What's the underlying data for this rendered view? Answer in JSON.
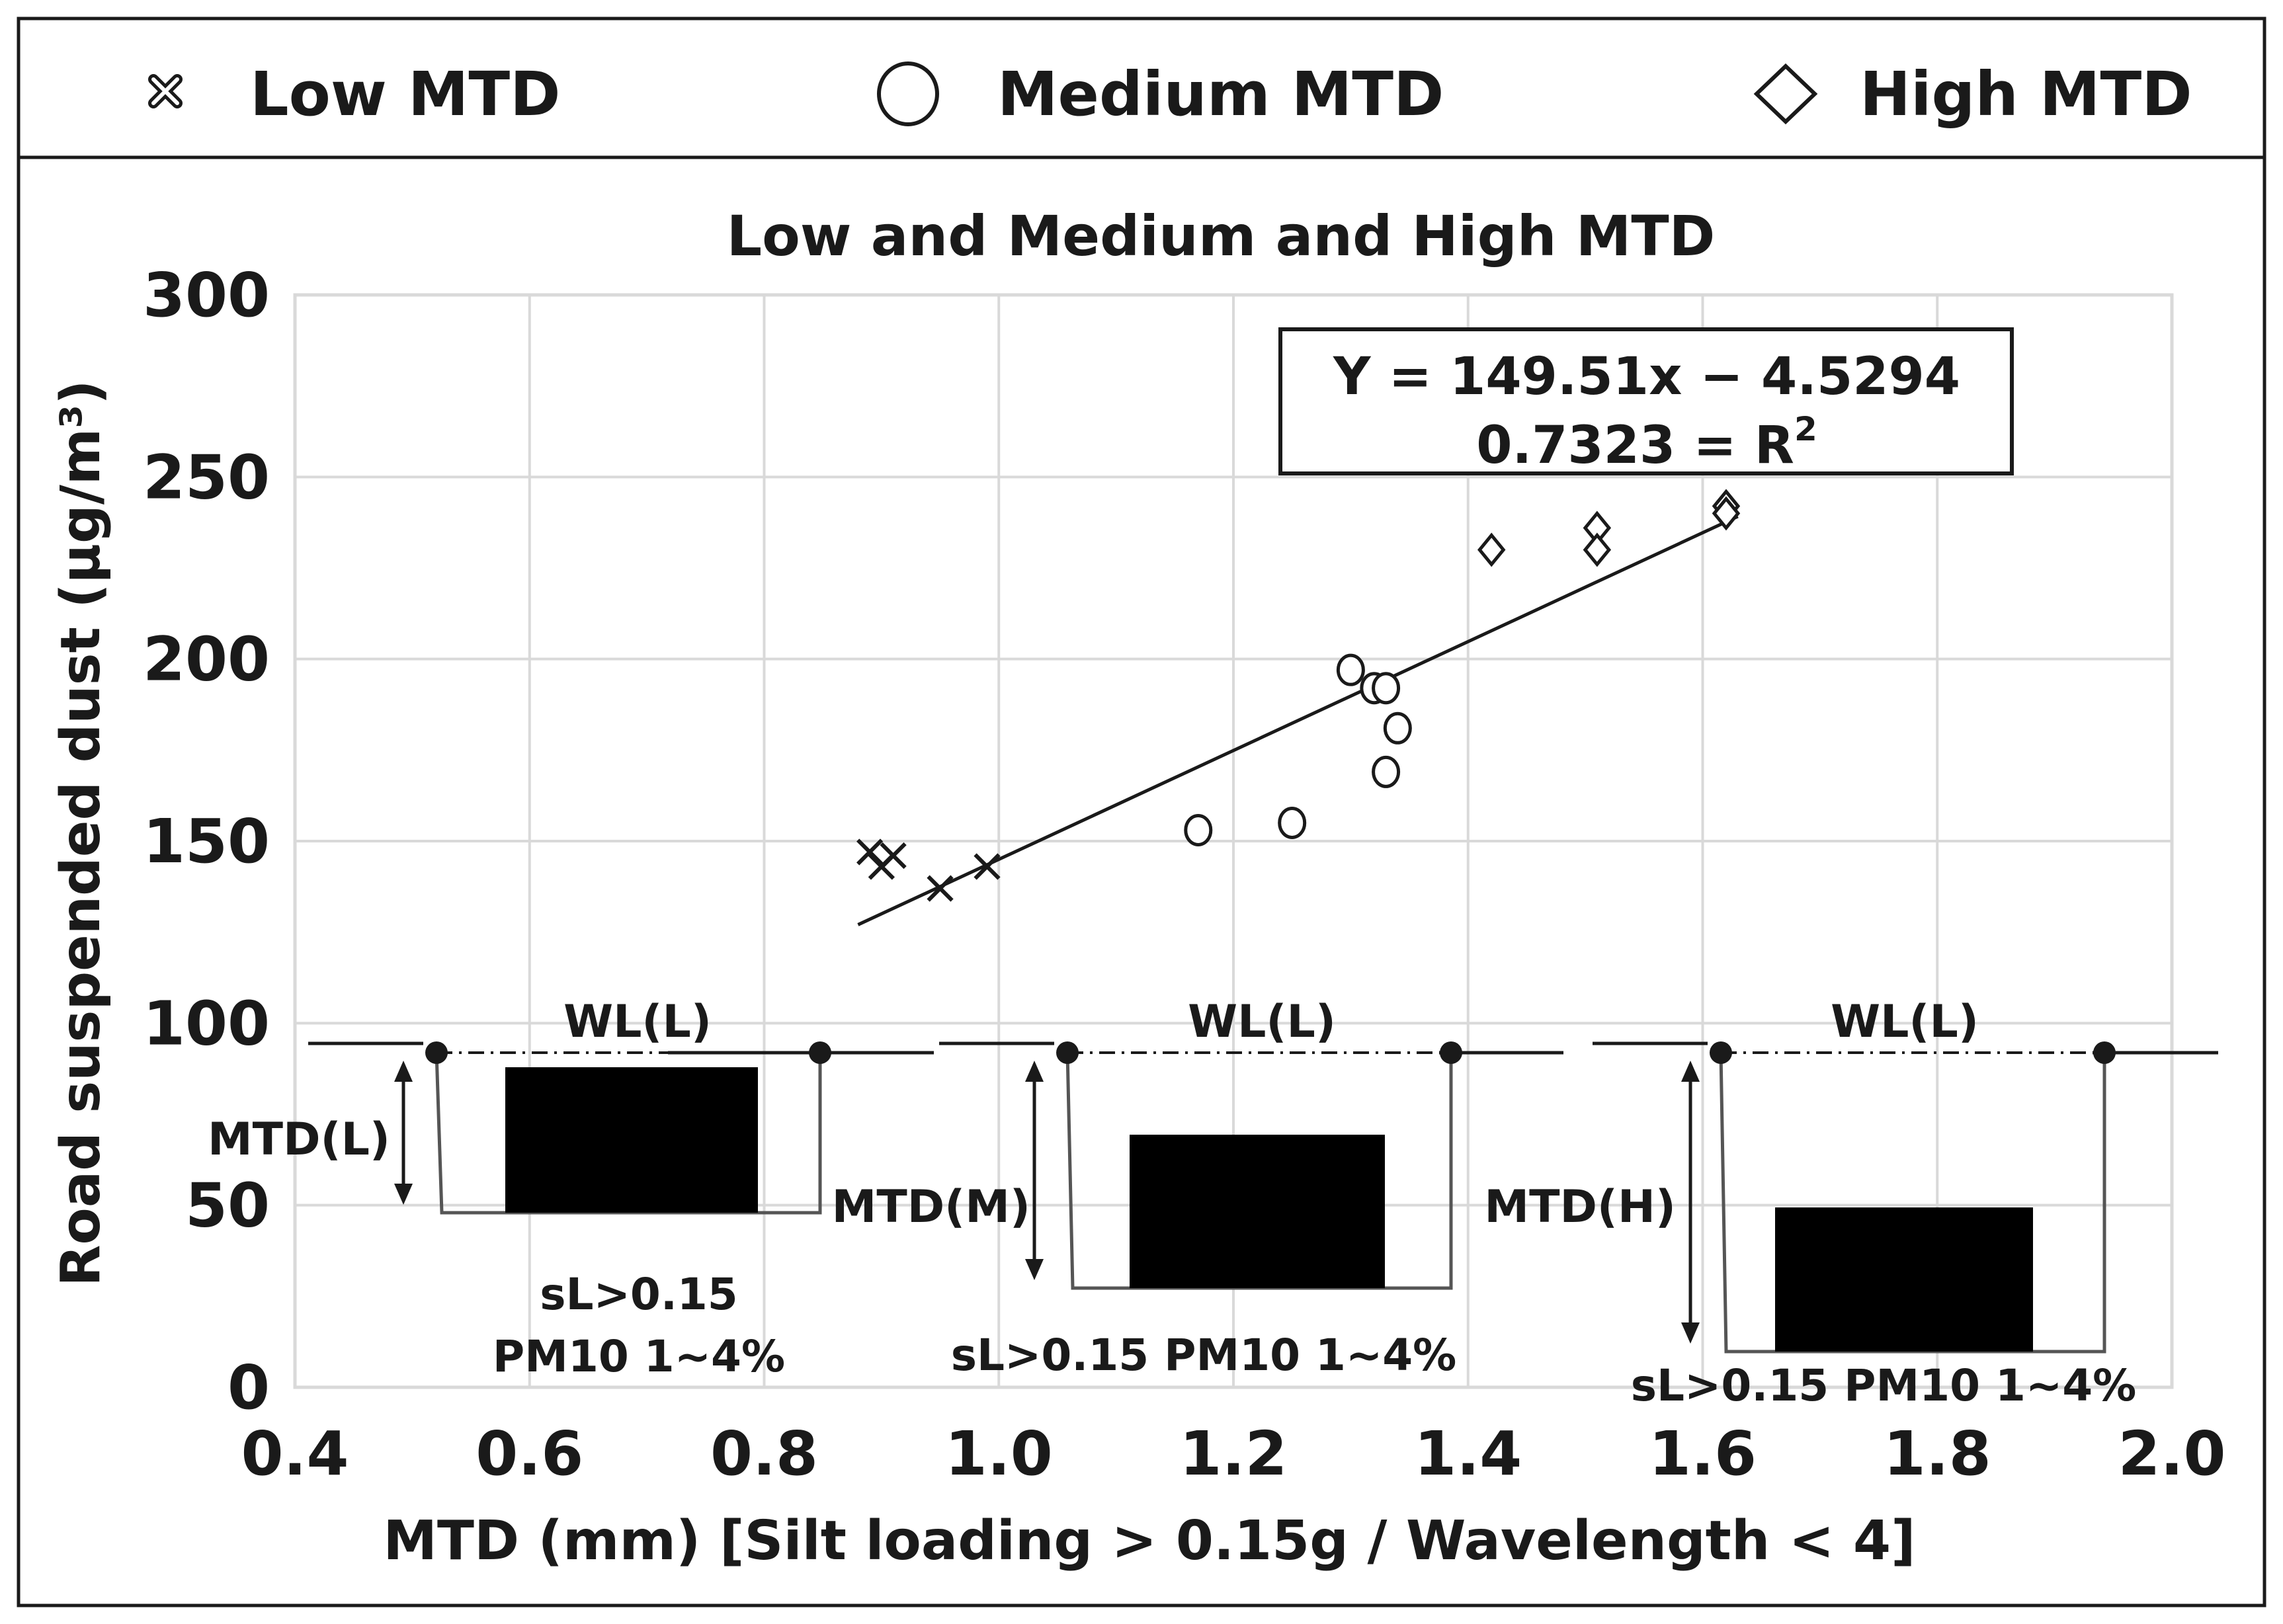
{
  "legend": {
    "items": [
      {
        "label": "Low MTD",
        "marker": "x-marker-icon"
      },
      {
        "label": "Medium MTD",
        "marker": "circle-marker-icon"
      },
      {
        "label": "High MTD",
        "marker": "diamond-marker-icon"
      }
    ]
  },
  "chart_data": {
    "type": "scatter",
    "title": "Low and Medium and High MTD",
    "xlabel": "MTD (mm) [Silt loading > 0.15g / Wavelength < 4]",
    "ylabel": "Road suspended dust (μg/m³)",
    "xlim": [
      0.4,
      2.0
    ],
    "ylim": [
      0,
      300
    ],
    "x_ticks": [
      "0.4",
      "0.6",
      "0.8",
      "1.0",
      "1.2",
      "1.4",
      "1.6",
      "1.8",
      "2.0"
    ],
    "y_ticks": [
      "0",
      "50",
      "100",
      "150",
      "200",
      "250",
      "300"
    ],
    "grid": true,
    "series": [
      {
        "name": "Low MTD",
        "marker": "x",
        "points": [
          [
            0.89,
            147
          ],
          [
            0.9,
            143
          ],
          [
            0.91,
            146
          ],
          [
            0.95,
            137
          ],
          [
            0.99,
            143
          ]
        ]
      },
      {
        "name": "Medium MTD",
        "marker": "circle",
        "points": [
          [
            1.17,
            153
          ],
          [
            1.25,
            155
          ],
          [
            1.3,
            197
          ],
          [
            1.32,
            192
          ],
          [
            1.33,
            192
          ],
          [
            1.34,
            181
          ],
          [
            1.33,
            169
          ]
        ]
      },
      {
        "name": "High MTD",
        "marker": "diamond",
        "points": [
          [
            1.42,
            230
          ],
          [
            1.51,
            236
          ],
          [
            1.51,
            230
          ],
          [
            1.62,
            242
          ],
          [
            1.62,
            240
          ]
        ]
      }
    ],
    "trendline": {
      "slope": 149.51,
      "intercept": -4.5294,
      "x_range": [
        0.88,
        1.63
      ]
    },
    "equation_text": {
      "line1": "Y = 149.51x − 4.5294",
      "r2_value": "0.7323 = R",
      "r2_sup": "2"
    }
  },
  "insets": [
    {
      "wl_label": "WL(L)",
      "mtd_label": "MTD(L)",
      "note_lines": [
        "sL>0.15",
        "PM10 1~4%"
      ]
    },
    {
      "wl_label": "WL(L)",
      "mtd_label": "MTD(M)",
      "note_lines": [
        "sL>0.15 PM10 1~4%"
      ]
    },
    {
      "wl_label": "WL(L)",
      "mtd_label": "MTD(H)",
      "note_lines": [
        "sL>0.15 PM10 1~4%"
      ]
    }
  ]
}
